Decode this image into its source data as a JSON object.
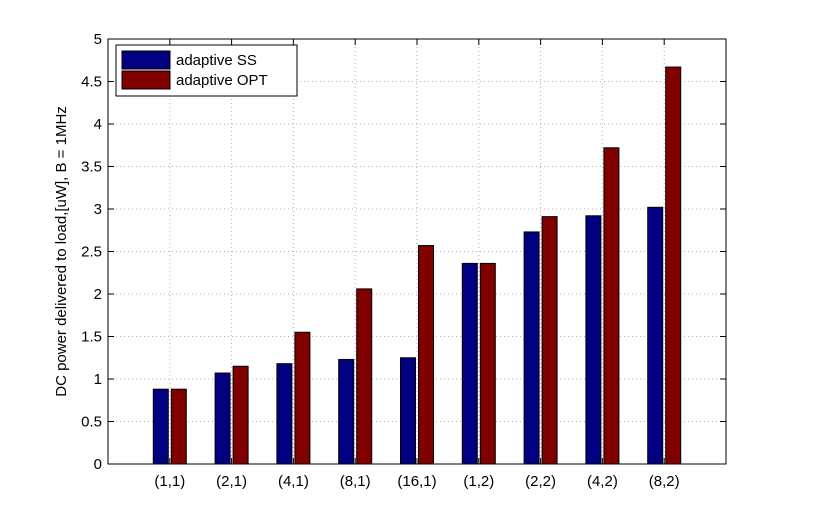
{
  "chart_data": {
    "type": "bar",
    "title": "",
    "xlabel": "",
    "ylabel": "DC power delivered to load,[uW], B = 1MHz",
    "ylim": [
      0,
      5
    ],
    "yticks": [
      "0",
      "0.5",
      "1",
      "1.5",
      "2",
      "2.5",
      "3",
      "3.5",
      "4",
      "4.5",
      "5"
    ],
    "grid": true,
    "legend_position": "top-left",
    "categories": [
      "(1,1)",
      "(2,1)",
      "(4,1)",
      "(8,1)",
      "(16,1)",
      "(1,2)",
      "(2,2)",
      "(4,2)",
      "(8,2)"
    ],
    "series": [
      {
        "name": "adaptive SS",
        "color": "#000080",
        "values": [
          0.88,
          1.07,
          1.18,
          1.23,
          1.25,
          2.36,
          2.73,
          2.92,
          3.02
        ]
      },
      {
        "name": "adaptive OPT",
        "color": "#800000",
        "values": [
          0.88,
          1.15,
          1.55,
          2.06,
          2.57,
          2.36,
          2.91,
          3.72,
          4.67
        ]
      }
    ]
  }
}
